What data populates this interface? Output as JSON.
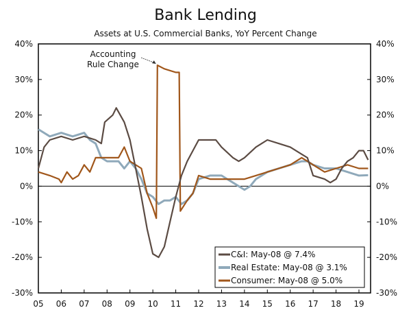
{
  "chart_data": {
    "type": "line",
    "title": "Bank Lending",
    "subtitle": "Assets at U.S. Commercial Banks, YoY Percent Change",
    "xlabel": "",
    "ylabel": "",
    "xlim": [
      2005,
      2019.6
    ],
    "ylim": [
      -30,
      40
    ],
    "x_ticks": [
      "05",
      "06",
      "07",
      "08",
      "09",
      "10",
      "11",
      "12",
      "13",
      "14",
      "15",
      "16",
      "17",
      "18",
      "19"
    ],
    "y_ticks": [
      "40%",
      "30%",
      "20%",
      "10%",
      "0%",
      "-10%",
      "-20%",
      "-30%"
    ],
    "y_axes": "left and right",
    "grid": false,
    "legend_placement": "bottom-right",
    "annotation": {
      "text_line1": "Accounting",
      "text_line2": "Rule Change",
      "x": 2010.2,
      "y": 34
    },
    "series": [
      {
        "name": "C&I: May-08 @ 7.4%",
        "color": "#5b4b43",
        "x": [
          2005,
          2005.25,
          2005.5,
          2006,
          2006.5,
          2007,
          2007.5,
          2007.75,
          2007.9,
          2008.25,
          2008.4,
          2008.75,
          2009,
          2009.25,
          2009.5,
          2009.75,
          2010,
          2010.25,
          2010.5,
          2010.75,
          2011,
          2011.25,
          2011.5,
          2011.75,
          2012,
          2012.5,
          2012.75,
          2013,
          2013.5,
          2013.75,
          2014,
          2014.5,
          2015,
          2015.5,
          2016,
          2016.5,
          2016.75,
          2017,
          2017.5,
          2017.75,
          2018,
          2018.25,
          2018.5,
          2018.75,
          2019,
          2019.2,
          2019.4
        ],
        "values": [
          5,
          11,
          13,
          14,
          13,
          14,
          13,
          12,
          18,
          20,
          22,
          18,
          13,
          5,
          -3,
          -12,
          -19,
          -20,
          -17,
          -10,
          -3,
          3,
          7,
          10,
          13,
          13,
          13,
          11,
          8,
          7,
          8,
          11,
          13,
          12,
          11,
          9,
          8,
          3,
          2,
          1,
          2,
          5,
          7,
          8,
          10,
          10,
          7.4
        ]
      },
      {
        "name": "Real Estate: May-08 @ 3.1%",
        "color": "#8fa9ba",
        "x": [
          2005,
          2005.5,
          2006,
          2006.5,
          2007,
          2007.25,
          2007.5,
          2007.75,
          2008,
          2008.5,
          2008.75,
          2009,
          2009.25,
          2009.5,
          2009.75,
          2010,
          2010.25,
          2010.5,
          2010.75,
          2011,
          2011.25,
          2011.5,
          2011.75,
          2012,
          2012.5,
          2013,
          2013.25,
          2013.5,
          2014,
          2014.25,
          2014.5,
          2015,
          2015.5,
          2016,
          2016.5,
          2016.75,
          2017,
          2017.5,
          2018,
          2018.5,
          2019,
          2019.4
        ],
        "values": [
          16,
          14,
          15,
          14,
          15,
          13,
          12,
          8,
          7,
          7,
          5,
          7,
          5,
          2,
          -2,
          -3,
          -5,
          -4,
          -4,
          -3,
          -5,
          -4,
          -2,
          2,
          3,
          3,
          2,
          1,
          -1,
          0,
          2,
          4,
          5,
          6,
          7,
          7,
          6,
          5,
          5,
          4,
          3,
          3.1
        ]
      },
      {
        "name": "Consumer: May-08 @ 5.0%",
        "color": "#a0561a",
        "x": [
          2005,
          2005.5,
          2005.9,
          2006,
          2006.25,
          2006.5,
          2006.75,
          2007,
          2007.25,
          2007.5,
          2008,
          2008.5,
          2008.75,
          2009,
          2009.5,
          2009.75,
          2010,
          2010.15,
          2010.2,
          2010.5,
          2011,
          2011.15,
          2011.2,
          2011.5,
          2011.75,
          2012,
          2012.5,
          2013,
          2014,
          2014.5,
          2015,
          2015.5,
          2016,
          2016.5,
          2016.75,
          2017,
          2017.5,
          2018,
          2018.5,
          2019,
          2019.4
        ],
        "values": [
          4,
          3,
          2,
          1,
          4,
          2,
          3,
          6,
          4,
          8,
          8,
          8,
          11,
          7,
          5,
          -2,
          -6,
          -9,
          34,
          33,
          32,
          32,
          -7,
          -4,
          -2,
          3,
          2,
          2,
          2,
          3,
          4,
          5,
          6,
          8,
          7,
          6,
          4,
          5,
          6,
          5,
          5.0
        ]
      }
    ]
  }
}
